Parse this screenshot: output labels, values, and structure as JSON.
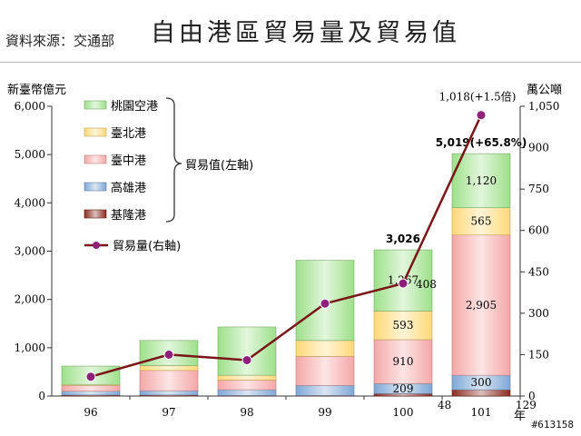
{
  "header": {
    "source": "資料來源：交通部",
    "title": "自由港區貿易量及貿易值"
  },
  "watermark": "#613158",
  "chart_data": {
    "type": "bar",
    "stacked": true,
    "categories": [
      "96",
      "97",
      "98",
      "99",
      "100",
      "101"
    ],
    "x_unit": "年",
    "left_axis": {
      "label": "新臺幣億元",
      "min": 0,
      "max": 6000,
      "ticks": [
        "0",
        "1,000",
        "2,000",
        "3,000",
        "4,000",
        "5,000",
        "6,000"
      ]
    },
    "right_axis": {
      "label": "萬公噸",
      "min": 0,
      "max": 1050,
      "ticks": [
        "0",
        "150",
        "300",
        "450",
        "600",
        "750",
        "900",
        "1,050"
      ]
    },
    "series": [
      {
        "name": "基隆港",
        "color": "#8b2a1e",
        "values": [
          20,
          20,
          10,
          10,
          48,
          129
        ]
      },
      {
        "name": "高雄港",
        "color": "#7fa7d6",
        "values": [
          80,
          90,
          120,
          210,
          209,
          300
        ]
      },
      {
        "name": "臺中港",
        "color": "#f5a7a7",
        "values": [
          120,
          420,
          200,
          600,
          910,
          2905
        ]
      },
      {
        "name": "臺北港",
        "color": "#ffd978",
        "values": [
          20,
          100,
          100,
          330,
          593,
          565
        ]
      },
      {
        "name": "桃園空港",
        "color": "#9ee08a",
        "values": [
          380,
          520,
          1000,
          1660,
          1267,
          1120
        ]
      }
    ],
    "line_series": {
      "name": "貿易量(右軸)",
      "color": "#7a1518",
      "marker_color": "#8e1f7a",
      "values": [
        70,
        150,
        130,
        335,
        408,
        1018
      ]
    },
    "legend": {
      "placement": "top-left",
      "bracket_label": "貿易值(左軸)"
    },
    "data_labels": [
      {
        "text": "1,120",
        "category": "101",
        "series": "桃園空港"
      },
      {
        "text": "565",
        "category": "101",
        "series": "臺北港"
      },
      {
        "text": "2,905",
        "category": "101",
        "series": "臺中港"
      },
      {
        "text": "300",
        "category": "101",
        "series": "高雄港"
      },
      {
        "text": "129",
        "category": "101",
        "series": "基隆港"
      },
      {
        "text": "1,267",
        "category": "100",
        "series": "桃園空港"
      },
      {
        "text": "593",
        "category": "100",
        "series": "臺北港"
      },
      {
        "text": "910",
        "category": "100",
        "series": "臺中港"
      },
      {
        "text": "209",
        "category": "100",
        "series": "高雄港"
      },
      {
        "text": "48",
        "category": "100",
        "series": "基隆港"
      }
    ],
    "total_labels": [
      {
        "text": "3,026",
        "category": "100"
      },
      {
        "text": "5,019(+65.8%)",
        "category": "101"
      }
    ],
    "line_labels": [
      {
        "text": "408",
        "category": "100"
      },
      {
        "text": "1,018(+1.5倍)",
        "category": "101"
      }
    ]
  }
}
